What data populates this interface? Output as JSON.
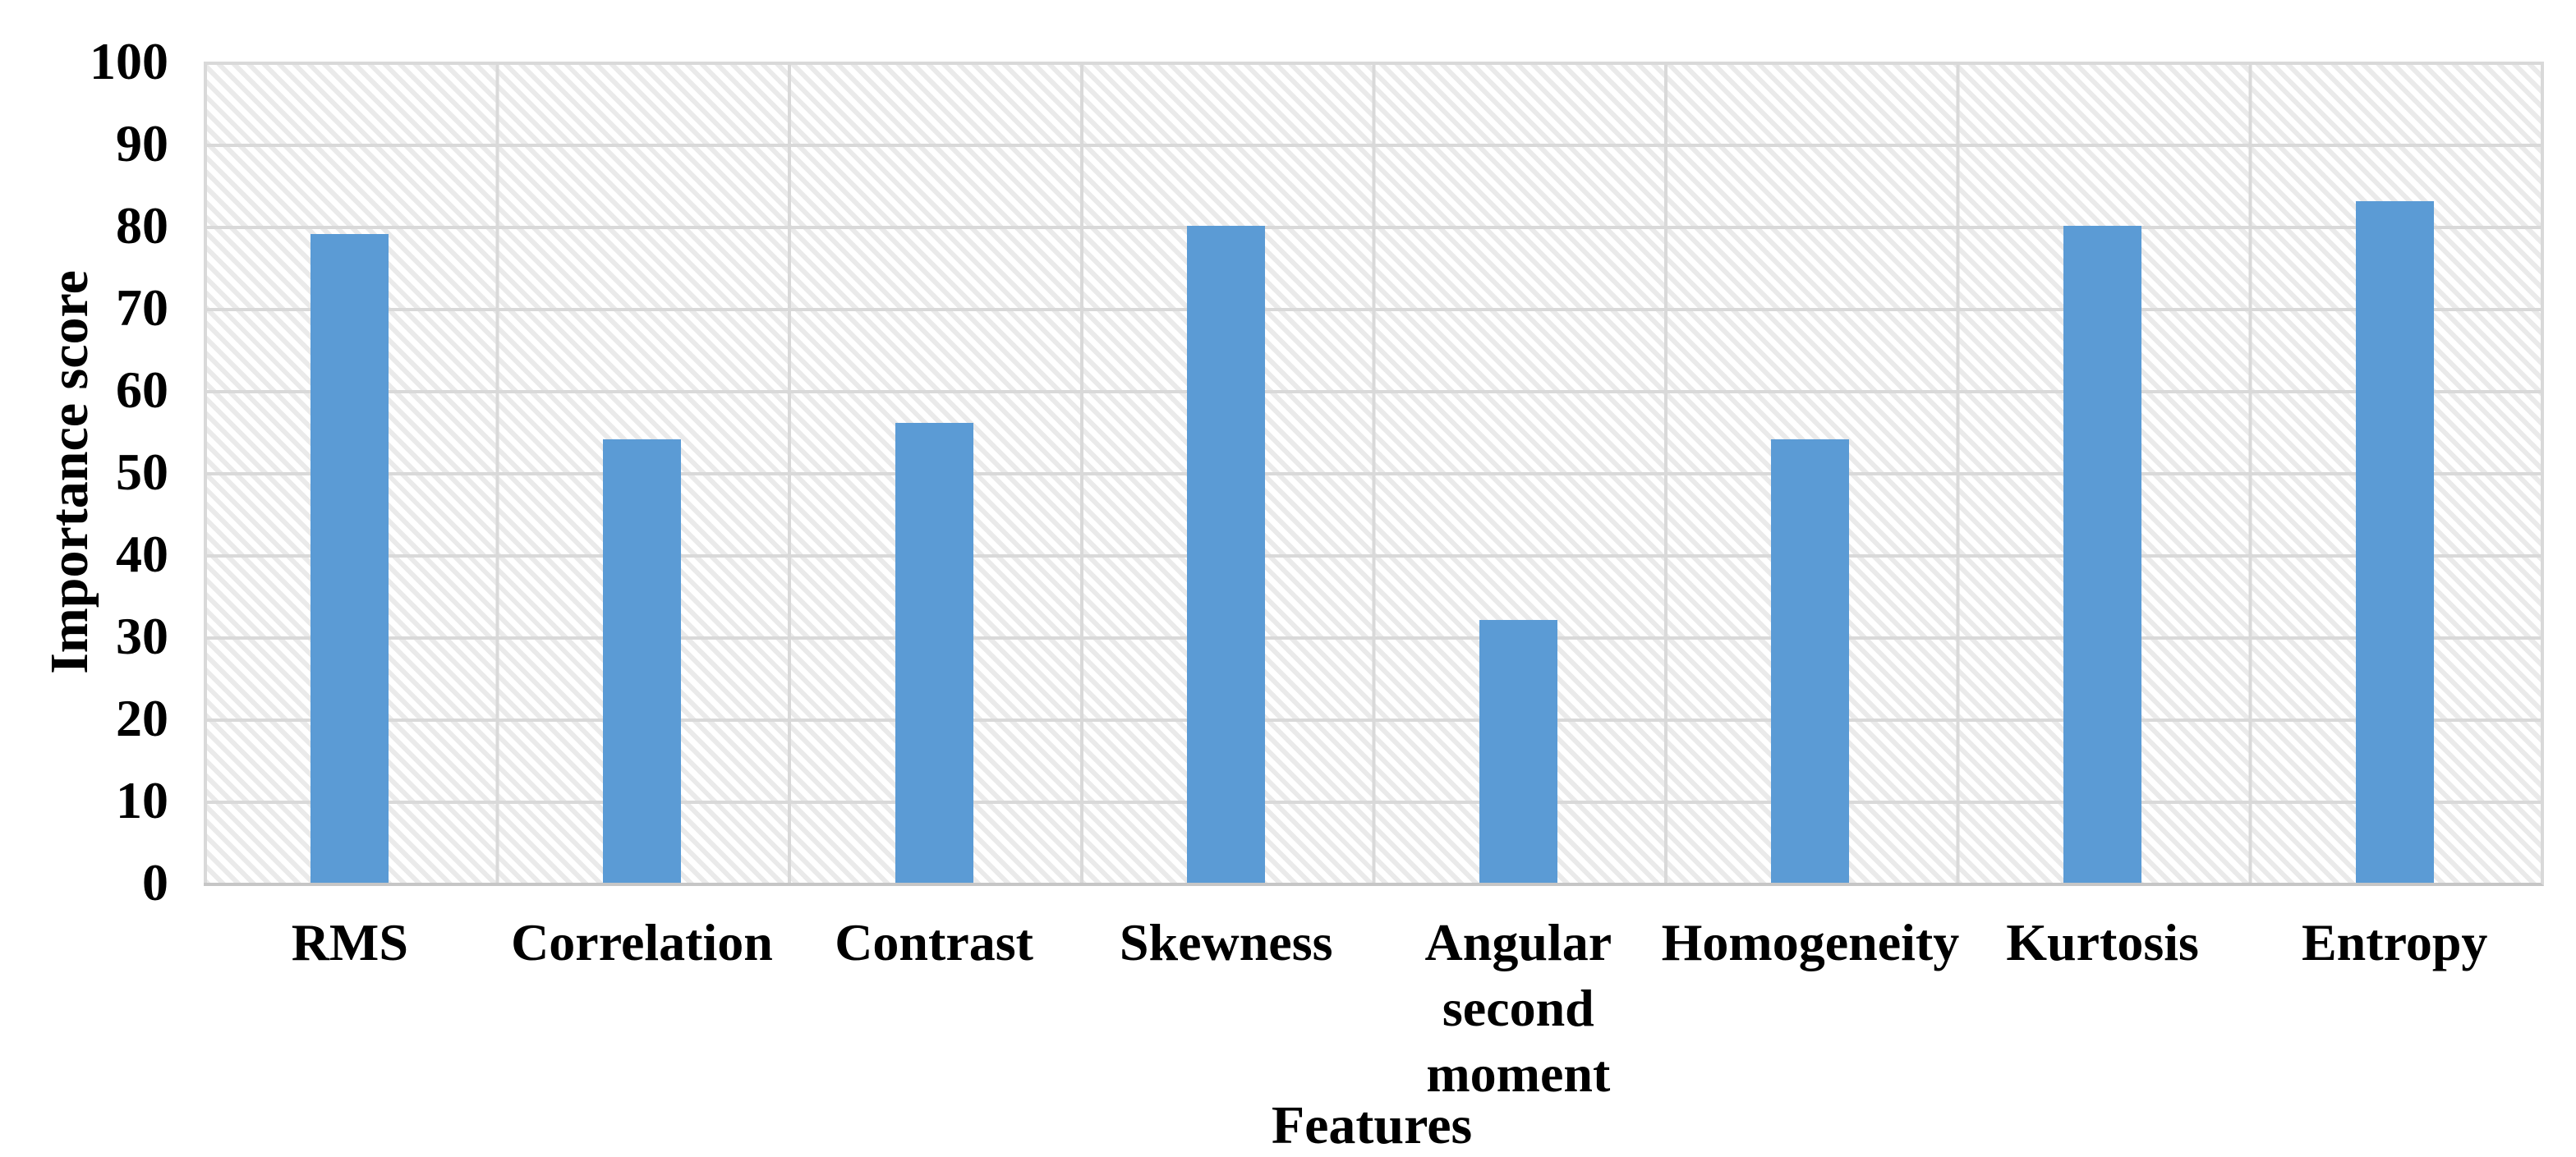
{
  "chart_data": {
    "type": "bar",
    "title": "",
    "xlabel": "Features",
    "ylabel": "Importance score",
    "categories": [
      "RMS",
      "Correlation",
      "Contrast",
      "Skewness",
      "Angular second moment",
      "Homogeneity",
      "Kurtosis",
      "Entropy"
    ],
    "values": [
      79,
      54,
      56,
      80,
      32,
      54,
      80,
      83
    ],
    "ylim": [
      0,
      100
    ],
    "yticks": [
      0,
      10,
      20,
      30,
      40,
      50,
      60,
      70,
      80,
      90,
      100
    ],
    "grid": {
      "horizontal": true,
      "vertical": true
    },
    "legend": {
      "visible": false
    },
    "plot_background": "diagonal-hatch",
    "colors": {
      "bar": "#5B9BD5",
      "gridline": "#d9d9d9",
      "hatch": "#eaeaea",
      "axis_line": "#c6c6c6",
      "text": "#000000",
      "background": "#ffffff"
    }
  }
}
